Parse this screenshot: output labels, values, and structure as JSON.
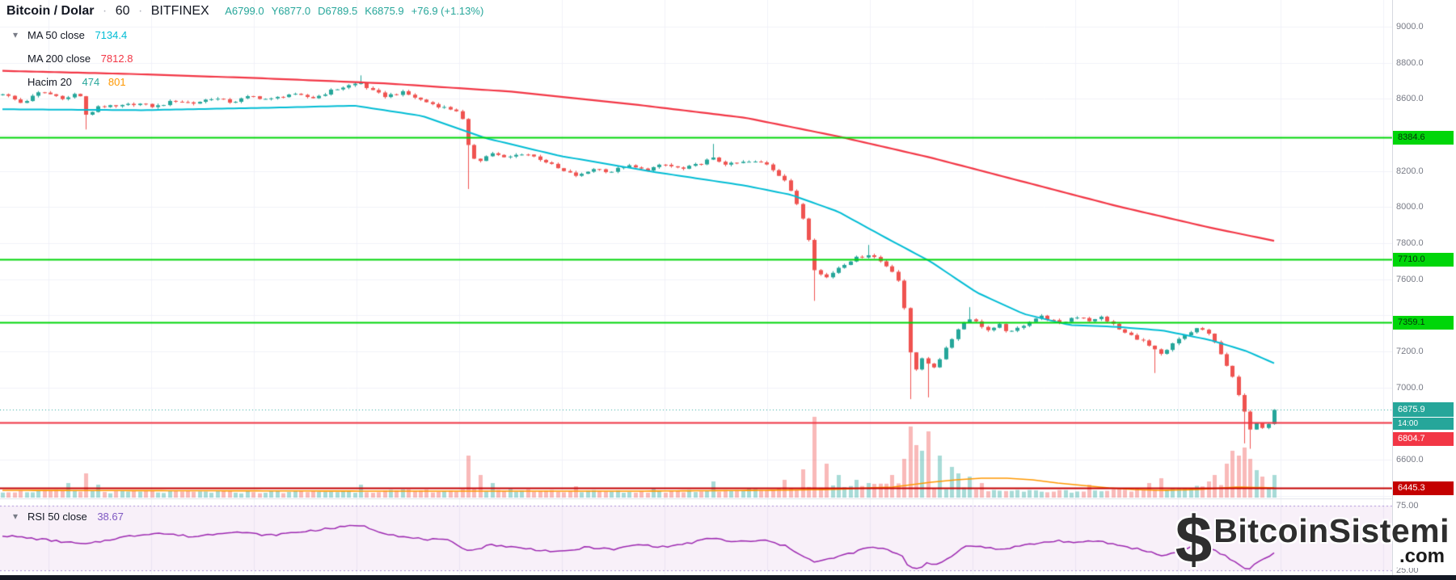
{
  "header": {
    "symbol": "Bitcoin / Dolar",
    "separator": "·",
    "interval": "60",
    "exchange": "BITFINEX",
    "ohlc": {
      "pairs": [
        {
          "k": "A",
          "v": "6799.0"
        },
        {
          "k": "Y",
          "v": "6877.0"
        },
        {
          "k": "D",
          "v": "6789.5"
        },
        {
          "k": "K",
          "v": "6875.9"
        }
      ],
      "change": "+76.9 (+1.13%)"
    }
  },
  "icons": {
    "chevron_down": "▾"
  },
  "legend": {
    "ma50": {
      "label": "MA 50 close",
      "value": "7134.4"
    },
    "ma200": {
      "label": "MA 200 close",
      "value": "7812.8"
    },
    "volume": {
      "label": "Hacim 20",
      "value": "474",
      "ma": "801"
    },
    "rsi": {
      "label": "RSI 50 close",
      "value": "38.67"
    }
  },
  "price_axis": {
    "ticks": [
      {
        "label": "9000.0",
        "price": 9000
      },
      {
        "label": "8800.0",
        "price": 8800
      },
      {
        "label": "8600.0",
        "price": 8600
      },
      {
        "label": "8200.0",
        "price": 8200
      },
      {
        "label": "8000.0",
        "price": 8000
      },
      {
        "label": "7800.0",
        "price": 7800
      },
      {
        "label": "7600.0",
        "price": 7600
      },
      {
        "label": "7200.0",
        "price": 7200
      },
      {
        "label": "7000.0",
        "price": 7000
      },
      {
        "label": "6600.0",
        "price": 6600
      }
    ],
    "levels": [
      {
        "label": "8384.6",
        "price": 8384.6,
        "type": "green"
      },
      {
        "label": "7710.0",
        "price": 7710.0,
        "type": "green"
      },
      {
        "label": "7359.1",
        "price": 7359.1,
        "type": "green"
      },
      {
        "label": "6804.7",
        "price": 6804.7,
        "type": "red"
      },
      {
        "label": "6445.3",
        "price": 6445.3,
        "type": "darkred"
      }
    ],
    "current": {
      "label": "6875.9",
      "price": 6875.9,
      "countdown": "14:00"
    }
  },
  "rsi_axis": {
    "upper": {
      "label": "75.00",
      "value": 75
    },
    "lower": {
      "label": "25.00",
      "value": 25
    }
  },
  "watermark": {
    "symbol": "$",
    "name": "BitcoinSistemi",
    "tld": ".com"
  },
  "colors": {
    "up": "#26a69a",
    "down": "#ef5350",
    "ma50": "#00bcd4",
    "ma200": "#f23645",
    "volume_ma": "#ff9800",
    "rsi": "#9c27b0",
    "green_level": "#00d60a",
    "red_level": "#f23645",
    "darkred_level": "#c40000",
    "axis_text": "#787b86"
  },
  "chart_data": {
    "type": "candlestick",
    "title": "Bitcoin / Dolar · 60 · BITFINEX",
    "interval_minutes": 60,
    "n_bars": 214,
    "visible_price_range": [
      6370,
      9150
    ],
    "price_gridline_step": 200,
    "last_bar": {
      "open": 6799.0,
      "high": 6877.0,
      "low": 6789.5,
      "close": 6875.9,
      "change": "+76.9",
      "change_pct": "+1.13%"
    },
    "current_price": 6875.9,
    "levels": [
      8384.6,
      7710.0,
      7359.1,
      6804.7,
      6445.3
    ],
    "close_keypoints": [
      [
        0,
        8630
      ],
      [
        0.015,
        8575
      ],
      [
        0.03,
        8640
      ],
      [
        0.05,
        8600
      ],
      [
        0.06,
        8640
      ],
      [
        0.066,
        8500
      ],
      [
        0.075,
        8560
      ],
      [
        0.09,
        8555
      ],
      [
        0.105,
        8575
      ],
      [
        0.12,
        8555
      ],
      [
        0.135,
        8590
      ],
      [
        0.15,
        8575
      ],
      [
        0.165,
        8605
      ],
      [
        0.18,
        8580
      ],
      [
        0.195,
        8615
      ],
      [
        0.21,
        8595
      ],
      [
        0.225,
        8625
      ],
      [
        0.245,
        8605
      ],
      [
        0.26,
        8650
      ],
      [
        0.281,
        8690
      ],
      [
        0.29,
        8645
      ],
      [
        0.3,
        8615
      ],
      [
        0.315,
        8635
      ],
      [
        0.33,
        8590
      ],
      [
        0.345,
        8555
      ],
      [
        0.36,
        8530
      ],
      [
        0.368,
        8280
      ],
      [
        0.375,
        8260
      ],
      [
        0.385,
        8300
      ],
      [
        0.395,
        8270
      ],
      [
        0.41,
        8300
      ],
      [
        0.425,
        8260
      ],
      [
        0.44,
        8200
      ],
      [
        0.453,
        8170
      ],
      [
        0.465,
        8215
      ],
      [
        0.478,
        8195
      ],
      [
        0.49,
        8230
      ],
      [
        0.505,
        8205
      ],
      [
        0.52,
        8235
      ],
      [
        0.535,
        8210
      ],
      [
        0.548,
        8240
      ],
      [
        0.558,
        8270
      ],
      [
        0.57,
        8235
      ],
      [
        0.585,
        8250
      ],
      [
        0.6,
        8245
      ],
      [
        0.615,
        8150
      ],
      [
        0.625,
        8010
      ],
      [
        0.632,
        7890
      ],
      [
        0.639,
        7640
      ],
      [
        0.648,
        7610
      ],
      [
        0.658,
        7670
      ],
      [
        0.668,
        7710
      ],
      [
        0.682,
        7740
      ],
      [
        0.692,
        7690
      ],
      [
        0.7,
        7645
      ],
      [
        0.707,
        7560
      ],
      [
        0.712,
        7230
      ],
      [
        0.718,
        7100
      ],
      [
        0.724,
        7180
      ],
      [
        0.73,
        7090
      ],
      [
        0.737,
        7160
      ],
      [
        0.745,
        7260
      ],
      [
        0.752,
        7330
      ],
      [
        0.759,
        7390
      ],
      [
        0.768,
        7350
      ],
      [
        0.776,
        7310
      ],
      [
        0.784,
        7345
      ],
      [
        0.792,
        7300
      ],
      [
        0.8,
        7335
      ],
      [
        0.808,
        7370
      ],
      [
        0.816,
        7395
      ],
      [
        0.824,
        7375
      ],
      [
        0.832,
        7350
      ],
      [
        0.84,
        7385
      ],
      [
        0.848,
        7395
      ],
      [
        0.856,
        7365
      ],
      [
        0.864,
        7390
      ],
      [
        0.872,
        7355
      ],
      [
        0.88,
        7310
      ],
      [
        0.888,
        7285
      ],
      [
        0.896,
        7260
      ],
      [
        0.904,
        7215
      ],
      [
        0.912,
        7175
      ],
      [
        0.92,
        7240
      ],
      [
        0.93,
        7290
      ],
      [
        0.941,
        7335
      ],
      [
        0.948,
        7295
      ],
      [
        0.955,
        7230
      ],
      [
        0.962,
        7130
      ],
      [
        0.968,
        7040
      ],
      [
        0.973,
        6930
      ],
      [
        0.978,
        6830
      ],
      [
        0.982,
        6760
      ],
      [
        0.986,
        6810
      ],
      [
        0.99,
        6780
      ],
      [
        0.995,
        6800
      ],
      [
        1,
        6875.9
      ]
    ],
    "wick_events": [
      {
        "t": 0.066,
        "low": 8430
      },
      {
        "t": 0.281,
        "high": 8730
      },
      {
        "t": 0.368,
        "low": 8100
      },
      {
        "t": 0.558,
        "high": 8350
      },
      {
        "t": 0.639,
        "low": 7480
      },
      {
        "t": 0.682,
        "high": 7790
      },
      {
        "t": 0.712,
        "low": 6935
      },
      {
        "t": 0.73,
        "low": 6945
      },
      {
        "t": 0.759,
        "high": 7445
      },
      {
        "t": 0.905,
        "low": 7080
      },
      {
        "t": 0.978,
        "low": 6690
      },
      {
        "t": 0.982,
        "low": 6660
      }
    ],
    "ma50": {
      "period": 50,
      "current": 7134.4,
      "points": [
        [
          0,
          8542
        ],
        [
          0.11,
          8537
        ],
        [
          0.22,
          8552
        ],
        [
          0.277,
          8562
        ],
        [
          0.33,
          8505
        ],
        [
          0.38,
          8382
        ],
        [
          0.438,
          8284
        ],
        [
          0.511,
          8196
        ],
        [
          0.584,
          8119
        ],
        [
          0.62,
          8068
        ],
        [
          0.657,
          7975
        ],
        [
          0.693,
          7836
        ],
        [
          0.73,
          7697
        ],
        [
          0.766,
          7527
        ],
        [
          0.803,
          7408
        ],
        [
          0.839,
          7346
        ],
        [
          0.876,
          7336
        ],
        [
          0.912,
          7316
        ],
        [
          0.949,
          7264
        ],
        [
          0.978,
          7202
        ],
        [
          1,
          7134.4
        ]
      ]
    },
    "ma200": {
      "period": 200,
      "current": 7812.8,
      "points": [
        [
          0,
          8755
        ],
        [
          0.1,
          8738
        ],
        [
          0.2,
          8715
        ],
        [
          0.3,
          8686
        ],
        [
          0.4,
          8640
        ],
        [
          0.5,
          8566
        ],
        [
          0.584,
          8495
        ],
        [
          0.657,
          8392
        ],
        [
          0.73,
          8274
        ],
        [
          0.803,
          8140
        ],
        [
          0.876,
          8006
        ],
        [
          0.949,
          7887
        ],
        [
          1,
          7812.8
        ]
      ]
    },
    "volume": {
      "period": 20,
      "current": 474,
      "ma_current": 801,
      "base_points": [
        [
          0,
          6
        ],
        [
          0.1,
          5
        ],
        [
          0.2,
          5
        ],
        [
          0.3,
          6
        ],
        [
          0.4,
          7
        ],
        [
          0.5,
          5
        ],
        [
          0.6,
          8
        ],
        [
          0.65,
          12
        ],
        [
          0.7,
          14
        ],
        [
          0.75,
          9
        ],
        [
          0.8,
          6
        ],
        [
          0.85,
          6
        ],
        [
          0.9,
          8
        ],
        [
          0.95,
          12
        ],
        [
          1,
          9
        ]
      ],
      "spikes": [
        [
          0.05,
          18
        ],
        [
          0.066,
          30
        ],
        [
          0.075,
          16
        ],
        [
          0.281,
          16
        ],
        [
          0.368,
          52
        ],
        [
          0.375,
          28
        ],
        [
          0.385,
          18
        ],
        [
          0.453,
          14
        ],
        [
          0.51,
          12
        ],
        [
          0.558,
          20
        ],
        [
          0.617,
          22
        ],
        [
          0.63,
          35
        ],
        [
          0.639,
          100
        ],
        [
          0.648,
          42
        ],
        [
          0.658,
          28
        ],
        [
          0.67,
          22
        ],
        [
          0.682,
          18
        ],
        [
          0.7,
          28
        ],
        [
          0.707,
          48
        ],
        [
          0.712,
          88
        ],
        [
          0.718,
          65
        ],
        [
          0.724,
          58
        ],
        [
          0.73,
          82
        ],
        [
          0.737,
          52
        ],
        [
          0.745,
          38
        ],
        [
          0.752,
          30
        ],
        [
          0.759,
          26
        ],
        [
          0.77,
          18
        ],
        [
          0.856,
          16
        ],
        [
          0.9,
          18
        ],
        [
          0.912,
          24
        ],
        [
          0.948,
          20
        ],
        [
          0.955,
          28
        ],
        [
          0.962,
          42
        ],
        [
          0.968,
          58
        ],
        [
          0.973,
          52
        ],
        [
          0.978,
          62
        ],
        [
          0.982,
          48
        ],
        [
          0.986,
          34
        ],
        [
          0.99,
          26
        ],
        [
          1,
          28
        ]
      ],
      "ma_points": [
        [
          0,
          9
        ],
        [
          0.3,
          8
        ],
        [
          0.5,
          8
        ],
        [
          0.6,
          9
        ],
        [
          0.65,
          10
        ],
        [
          0.7,
          13
        ],
        [
          0.73,
          19
        ],
        [
          0.75,
          22
        ],
        [
          0.77,
          24
        ],
        [
          0.79,
          24
        ],
        [
          0.81,
          22
        ],
        [
          0.83,
          18
        ],
        [
          0.85,
          15
        ],
        [
          0.87,
          12
        ],
        [
          0.89,
          10
        ],
        [
          0.91,
          9
        ],
        [
          0.94,
          10
        ],
        [
          0.97,
          13
        ],
        [
          1,
          12
        ]
      ]
    },
    "rsi": {
      "period": 50,
      "current": 38.67,
      "upper_band": 75,
      "lower_band": 25,
      "points": [
        [
          0,
          52
        ],
        [
          0.03,
          49
        ],
        [
          0.066,
          45
        ],
        [
          0.09,
          50
        ],
        [
          0.12,
          54
        ],
        [
          0.15,
          51
        ],
        [
          0.18,
          55
        ],
        [
          0.21,
          52
        ],
        [
          0.245,
          56
        ],
        [
          0.281,
          60
        ],
        [
          0.3,
          54
        ],
        [
          0.32,
          50
        ],
        [
          0.35,
          48
        ],
        [
          0.368,
          40
        ],
        [
          0.385,
          45
        ],
        [
          0.4,
          43
        ],
        [
          0.42,
          41
        ],
        [
          0.44,
          39
        ],
        [
          0.46,
          43
        ],
        [
          0.48,
          41
        ],
        [
          0.5,
          45
        ],
        [
          0.52,
          43
        ],
        [
          0.54,
          46
        ],
        [
          0.558,
          50
        ],
        [
          0.575,
          47
        ],
        [
          0.6,
          48
        ],
        [
          0.615,
          44
        ],
        [
          0.625,
          39
        ],
        [
          0.639,
          31
        ],
        [
          0.655,
          35
        ],
        [
          0.67,
          39
        ],
        [
          0.682,
          43
        ],
        [
          0.695,
          41
        ],
        [
          0.707,
          37
        ],
        [
          0.712,
          29
        ],
        [
          0.72,
          26
        ],
        [
          0.727,
          31
        ],
        [
          0.733,
          28
        ],
        [
          0.745,
          35
        ],
        [
          0.759,
          45
        ],
        [
          0.77,
          43
        ],
        [
          0.785,
          41
        ],
        [
          0.8,
          44
        ],
        [
          0.815,
          46
        ],
        [
          0.83,
          48
        ],
        [
          0.845,
          46
        ],
        [
          0.86,
          48
        ],
        [
          0.875,
          45
        ],
        [
          0.89,
          42
        ],
        [
          0.9,
          40
        ],
        [
          0.912,
          36
        ],
        [
          0.925,
          40
        ],
        [
          0.941,
          45
        ],
        [
          0.95,
          42
        ],
        [
          0.958,
          38
        ],
        [
          0.965,
          34
        ],
        [
          0.971,
          30
        ],
        [
          0.976,
          26
        ],
        [
          0.982,
          27
        ],
        [
          0.988,
          32
        ],
        [
          0.994,
          35
        ],
        [
          1,
          38.67
        ]
      ]
    }
  }
}
